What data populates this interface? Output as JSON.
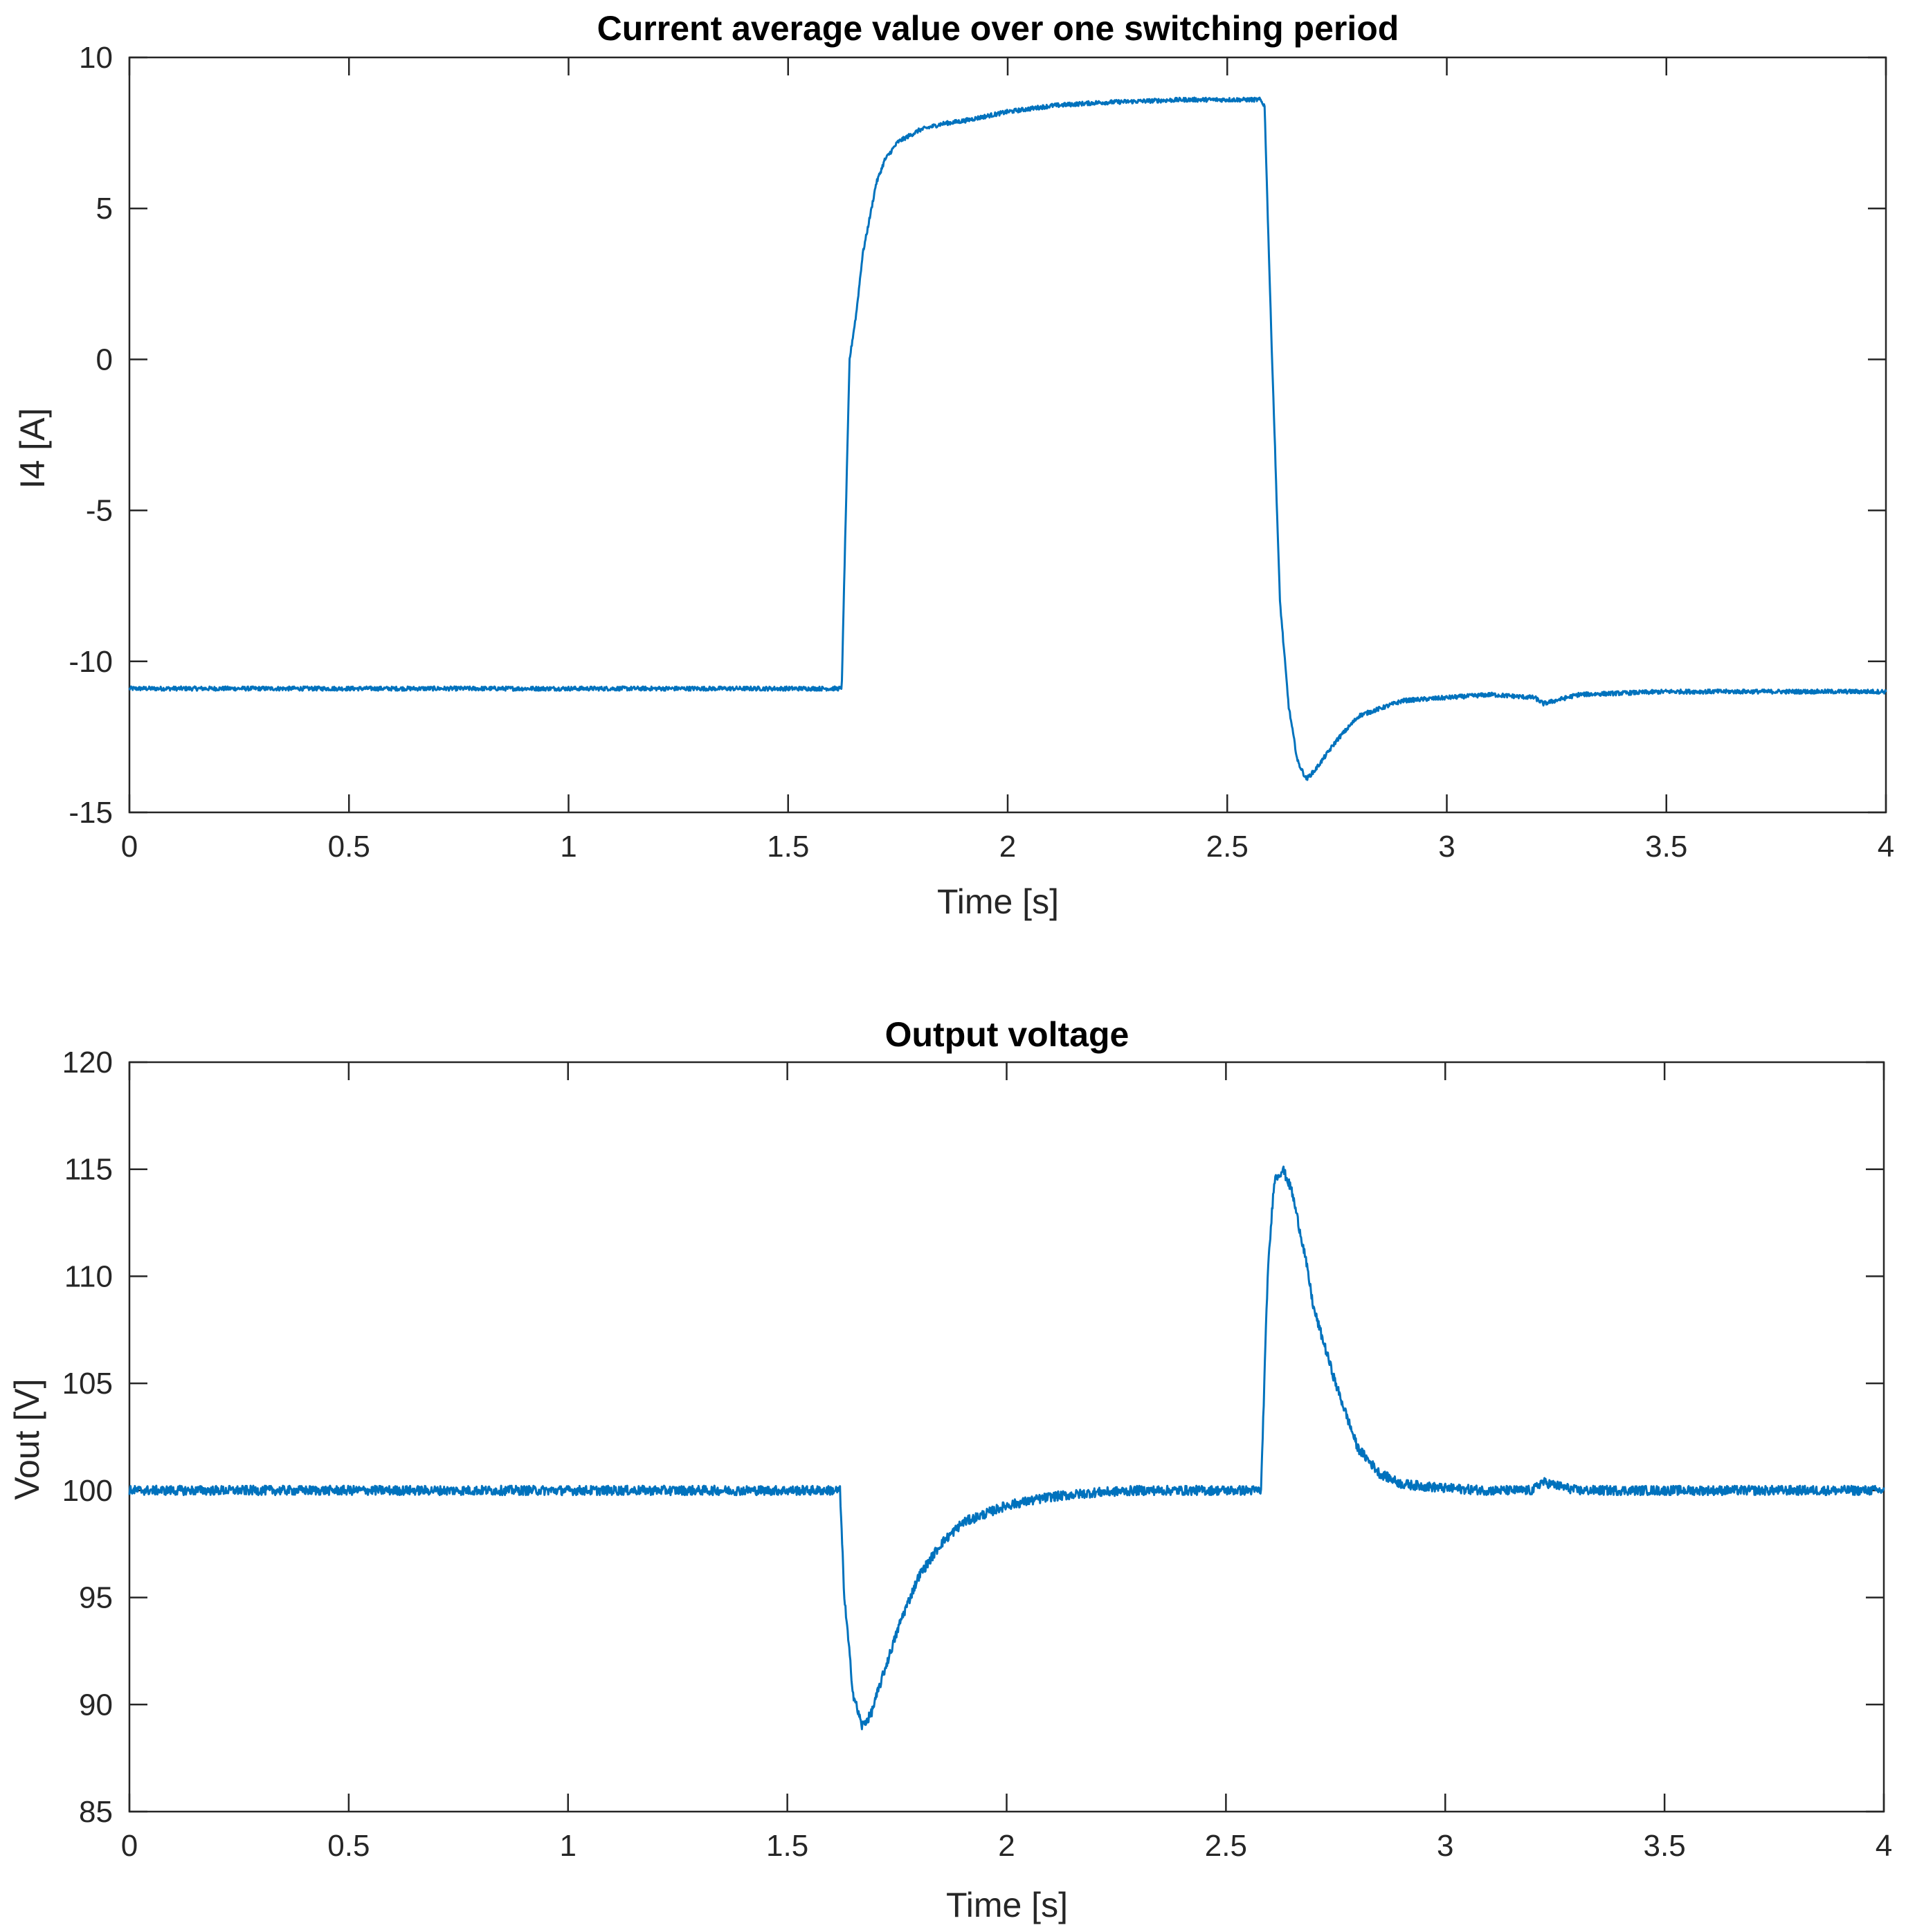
{
  "chart_data": [
    {
      "type": "line",
      "title": "Current average value over one switching period",
      "xlabel": "Time [s]",
      "ylabel": "I4 [A]",
      "xlim": [
        0,
        4
      ],
      "ylim": [
        -15,
        10
      ],
      "xticks": [
        0,
        0.5,
        1,
        1.5,
        2,
        2.5,
        3,
        3.5,
        4
      ],
      "xtick_labels": [
        "0",
        "0.5",
        "1",
        "1.5",
        "2",
        "2.5",
        "3",
        "3.5",
        "4"
      ],
      "yticks": [
        -15,
        -10,
        -5,
        0,
        5,
        10
      ],
      "ytick_labels": [
        "-15",
        "-10",
        "-5",
        "0",
        "5",
        "10"
      ],
      "grid": false,
      "color": "#0072BD",
      "series": [
        {
          "x": [
            0,
            0.5,
            1,
            1.5,
            1.615,
            1.622,
            1.63,
            1.64,
            1.655,
            1.67,
            1.69,
            1.7,
            1.72,
            1.75,
            1.8,
            1.85,
            1.9,
            2.0,
            2.1,
            2.2,
            2.3,
            2.4,
            2.5,
            2.575,
            2.585,
            2.6,
            2.62,
            2.64,
            2.66,
            2.68,
            2.7,
            2.72,
            2.75,
            2.8,
            2.9,
            3.0,
            3.1,
            3.2,
            3.22,
            3.3,
            3.5,
            4.0
          ],
          "y": [
            -10.9,
            -10.9,
            -10.9,
            -10.9,
            -10.9,
            -10.9,
            -6,
            0,
            1.5,
            3.5,
            5,
            5.8,
            6.6,
            7.2,
            7.6,
            7.8,
            7.9,
            8.2,
            8.4,
            8.5,
            8.55,
            8.6,
            8.6,
            8.6,
            8.4,
            1,
            -8,
            -11.5,
            -13.3,
            -13.9,
            -13.6,
            -13.2,
            -12.6,
            -11.8,
            -11.3,
            -11.2,
            -11.1,
            -11.2,
            -11.4,
            -11.1,
            -11.0,
            -11.0
          ]
        }
      ]
    },
    {
      "type": "line",
      "title": "Output voltage",
      "xlabel": "Time [s]",
      "ylabel": "Vout [V]",
      "xlim": [
        0,
        4
      ],
      "ylim": [
        85,
        120
      ],
      "xticks": [
        0,
        0.5,
        1,
        1.5,
        2,
        2.5,
        3,
        3.5,
        4
      ],
      "xtick_labels": [
        "0",
        "0.5",
        "1",
        "1.5",
        "2",
        "2.5",
        "3",
        "3.5",
        "4"
      ],
      "yticks": [
        85,
        90,
        95,
        100,
        105,
        110,
        115,
        120
      ],
      "ytick_labels": [
        "85",
        "90",
        "95",
        "100",
        "105",
        "110",
        "115",
        "120"
      ],
      "grid": false,
      "color": "#0072BD",
      "series": [
        {
          "x": [
            0,
            0.5,
            1,
            1.5,
            1.62,
            1.63,
            1.65,
            1.67,
            1.69,
            1.72,
            1.76,
            1.8,
            1.85,
            1.9,
            2.0,
            2.1,
            2.2,
            2.3,
            2.4,
            2.5,
            2.58,
            2.595,
            2.61,
            2.63,
            2.65,
            2.68,
            2.7,
            2.75,
            2.8,
            2.85,
            2.9,
            3.0,
            3.1,
            3.2,
            3.22,
            3.3,
            3.5,
            4.0
          ],
          "y": [
            100,
            100,
            100,
            100,
            100,
            95,
            90.5,
            89,
            89.5,
            91.5,
            94,
            96,
            97.5,
            98.5,
            99.3,
            99.7,
            99.9,
            100,
            100,
            100,
            100,
            110,
            114.5,
            115,
            114,
            111,
            108.5,
            105,
            102,
            100.8,
            100.3,
            100.1,
            100,
            100,
            100.4,
            100,
            100,
            100
          ]
        }
      ]
    }
  ]
}
